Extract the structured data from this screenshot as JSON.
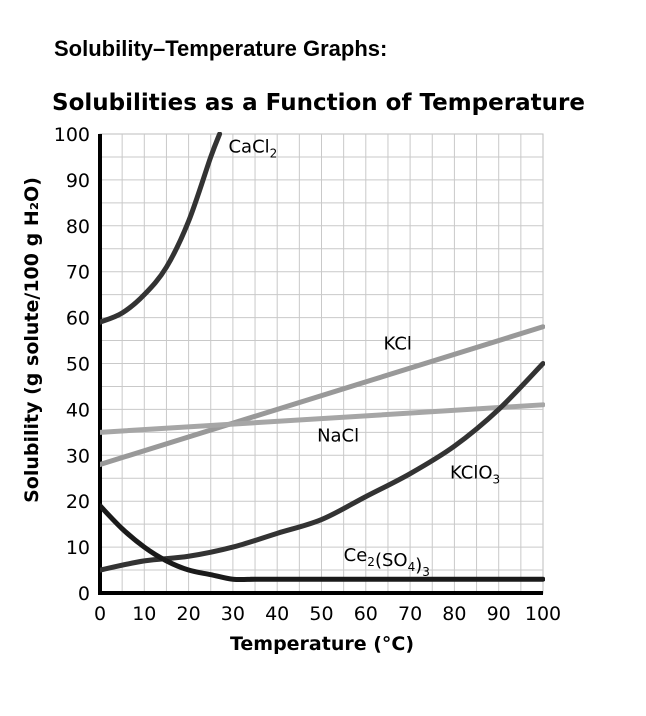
{
  "page": {
    "heading": "Solubility–Temperature Graphs:"
  },
  "chart_data": {
    "type": "line",
    "title": "Solubilities as a Function of Temperature",
    "xlabel": "Temperature (°C)",
    "ylabel": "Solubility (g solute/100 g H₂O)",
    "xlim": [
      0,
      100
    ],
    "ylim": [
      0,
      100
    ],
    "xticks": [
      0,
      10,
      20,
      30,
      40,
      50,
      60,
      70,
      80,
      90,
      100
    ],
    "yticks": [
      0,
      10,
      20,
      30,
      40,
      50,
      60,
      70,
      80,
      90,
      100
    ],
    "grid": true,
    "series": [
      {
        "name": "CaCl₂",
        "label_main": "CaCl",
        "label_sub": "2",
        "label_tail": "",
        "label_tail_sub": "",
        "color": "#333333",
        "x": [
          0,
          5,
          10,
          15,
          20,
          25,
          27
        ],
        "y": [
          59,
          61,
          65,
          71,
          81,
          95,
          100
        ]
      },
      {
        "name": "KCl",
        "label_main": "KCl",
        "label_sub": "",
        "label_tail": "",
        "label_tail_sub": "",
        "color": "#999999",
        "x": [
          0,
          100
        ],
        "y": [
          28,
          58
        ]
      },
      {
        "name": "NaCl",
        "label_main": "NaCl",
        "label_sub": "",
        "label_tail": "",
        "label_tail_sub": "",
        "color": "#a6a6a6",
        "x": [
          0,
          100
        ],
        "y": [
          35,
          41
        ]
      },
      {
        "name": "KClO₃",
        "label_main": "KClO",
        "label_sub": "3",
        "label_tail": "",
        "label_tail_sub": "",
        "color": "#333333",
        "x": [
          0,
          10,
          20,
          30,
          40,
          50,
          60,
          70,
          80,
          90,
          100
        ],
        "y": [
          5,
          7,
          8,
          10,
          13,
          16,
          21,
          26,
          32,
          40,
          50
        ]
      },
      {
        "name": "Ce₂(SO₄)₃",
        "label_main": "Ce",
        "label_sub": "2",
        "label_tail": "(SO",
        "label_tail_sub": "4",
        "label_tail2": ")",
        "label_tail2_sub": "3",
        "color": "#1a1a1a",
        "x": [
          0,
          5,
          10,
          15,
          20,
          25,
          30,
          35,
          40,
          100
        ],
        "y": [
          19,
          14,
          10,
          7,
          5,
          4,
          3,
          3,
          3,
          3
        ]
      }
    ]
  }
}
